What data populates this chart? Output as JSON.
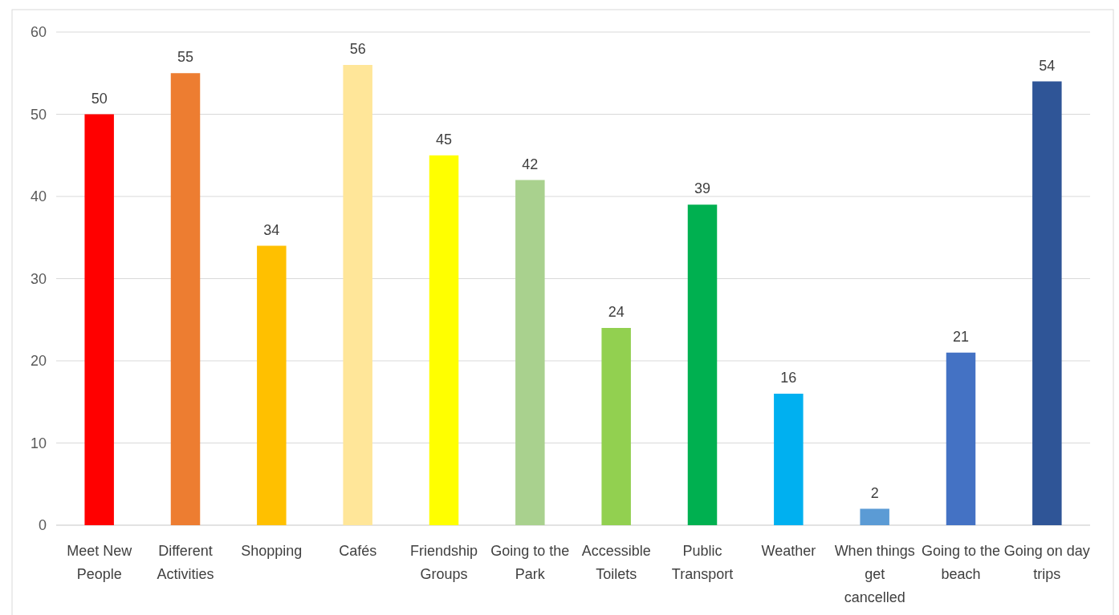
{
  "chart_data": {
    "type": "bar",
    "categories": [
      "Meet New People",
      "Different Activities",
      "Shopping",
      "Cafés",
      "Friendship Groups",
      "Going to the Park",
      "Accessible Toilets",
      "Public Transport",
      "Weather",
      "When things get cancelled",
      "Going to the beach",
      "Going on day trips"
    ],
    "values": [
      50,
      55,
      34,
      56,
      45,
      42,
      24,
      39,
      16,
      2,
      21,
      54
    ],
    "colors": [
      "#ff0000",
      "#ed7d31",
      "#ffc000",
      "#ffe699",
      "#ffff00",
      "#a9d18e",
      "#92d050",
      "#00b050",
      "#00b0f0",
      "#5b9bd5",
      "#4472c4",
      "#2f5597"
    ],
    "ylim": [
      0,
      60
    ],
    "yticks": [
      0,
      10,
      20,
      30,
      40,
      50,
      60
    ],
    "grid": "y",
    "data_labels": true
  }
}
